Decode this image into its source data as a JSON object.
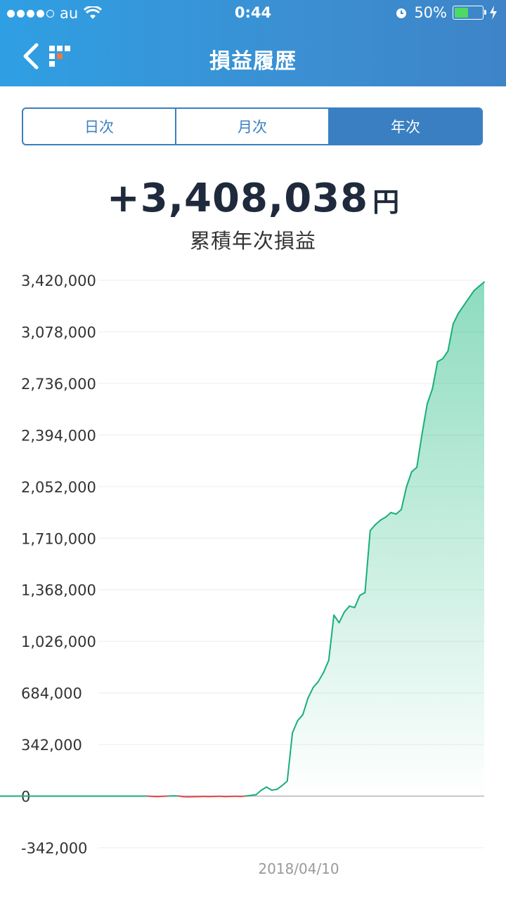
{
  "status_bar": {
    "carrier": "au",
    "time": "0:44",
    "battery": "50%",
    "battery_level": 0.5
  },
  "nav": {
    "title": "損益履歴",
    "back_icon": "chevron-left-icon",
    "logo_icon": "app-logo-icon"
  },
  "tabs": [
    {
      "label": "日次",
      "active": false
    },
    {
      "label": "月次",
      "active": false
    },
    {
      "label": "年次",
      "active": true
    }
  ],
  "summary": {
    "amount": "+3,408,038",
    "unit": "円",
    "caption": "累積年次損益"
  },
  "colors": {
    "header": "#3b8fd2",
    "accent": "#3a7fc2",
    "positive_line": "#1aae7a",
    "negative_line": "#e04b4b"
  },
  "chart_data": {
    "type": "area",
    "ylim": [
      -342000,
      3420000
    ],
    "y_ticks": [
      "3,420,000",
      "3,078,000",
      "2,736,000",
      "2,394,000",
      "2,052,000",
      "1,710,000",
      "1,368,000",
      "1,026,000",
      "684,000",
      "342,000",
      "0",
      "-342,000"
    ],
    "x_label": "2018/04/10",
    "values": [
      0,
      0,
      0,
      0,
      0,
      0,
      0,
      0,
      0,
      0,
      0,
      0,
      0,
      0,
      0,
      0,
      0,
      0,
      0,
      0,
      0,
      0,
      0,
      0,
      -2000,
      -3000,
      -1000,
      0,
      2000,
      1000,
      -4000,
      -5000,
      -4000,
      -3000,
      -2000,
      -3000,
      -2000,
      -1000,
      -3000,
      -2000,
      -1000,
      -2000,
      1000,
      5000,
      10000,
      40000,
      60000,
      40000,
      45000,
      70000,
      100000,
      420000,
      500000,
      540000,
      650000,
      720000,
      760000,
      820000,
      900000,
      1200000,
      1150000,
      1220000,
      1260000,
      1250000,
      1330000,
      1350000,
      1760000,
      1800000,
      1830000,
      1850000,
      1880000,
      1870000,
      1900000,
      2050000,
      2150000,
      2180000,
      2400000,
      2600000,
      2700000,
      2880000,
      2900000,
      2950000,
      3130000,
      3200000,
      3250000,
      3300000,
      3350000,
      3380000,
      3408038
    ]
  }
}
